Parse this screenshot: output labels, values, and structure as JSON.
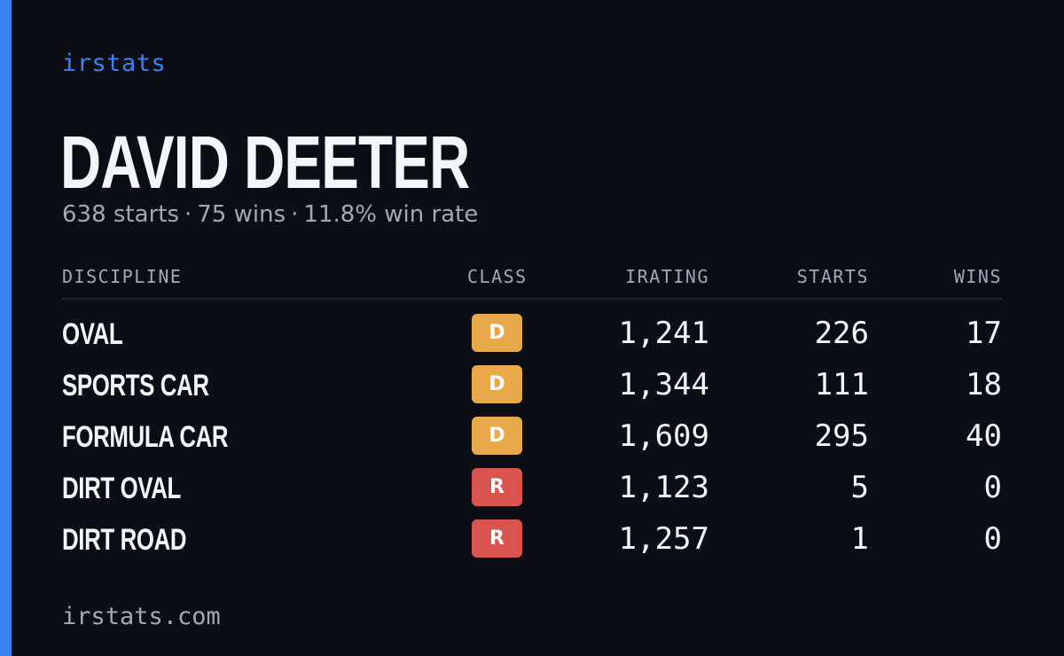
{
  "brand": "irstats",
  "driver": {
    "name": "DAVID DEETER",
    "starts_text": "638 starts",
    "wins_text": "75 wins",
    "win_rate_text": "11.8% win rate",
    "separator": "·"
  },
  "table": {
    "headers": {
      "discipline": "DISCIPLINE",
      "class": "CLASS",
      "irating": "IRATING",
      "starts": "STARTS",
      "wins": "WINS"
    },
    "rows": [
      {
        "discipline": "OVAL",
        "class": "D",
        "class_color": "#e8a94a",
        "irating": "1,241",
        "starts": "226",
        "wins": "17"
      },
      {
        "discipline": "SPORTS CAR",
        "class": "D",
        "class_color": "#e8a94a",
        "irating": "1,344",
        "starts": "111",
        "wins": "18"
      },
      {
        "discipline": "FORMULA CAR",
        "class": "D",
        "class_color": "#e8a94a",
        "irating": "1,609",
        "starts": "295",
        "wins": "40"
      },
      {
        "discipline": "DIRT OVAL",
        "class": "R",
        "class_color": "#d9534f",
        "irating": "1,123",
        "starts": "5",
        "wins": "0"
      },
      {
        "discipline": "DIRT ROAD",
        "class": "R",
        "class_color": "#d9534f",
        "irating": "1,257",
        "starts": "1",
        "wins": "0"
      }
    ]
  },
  "footer": "irstats.com",
  "colors": {
    "background": "#0b0e15",
    "accent": "#3b82f6",
    "text": "#f4f6fa",
    "muted": "#a1a8b6"
  }
}
